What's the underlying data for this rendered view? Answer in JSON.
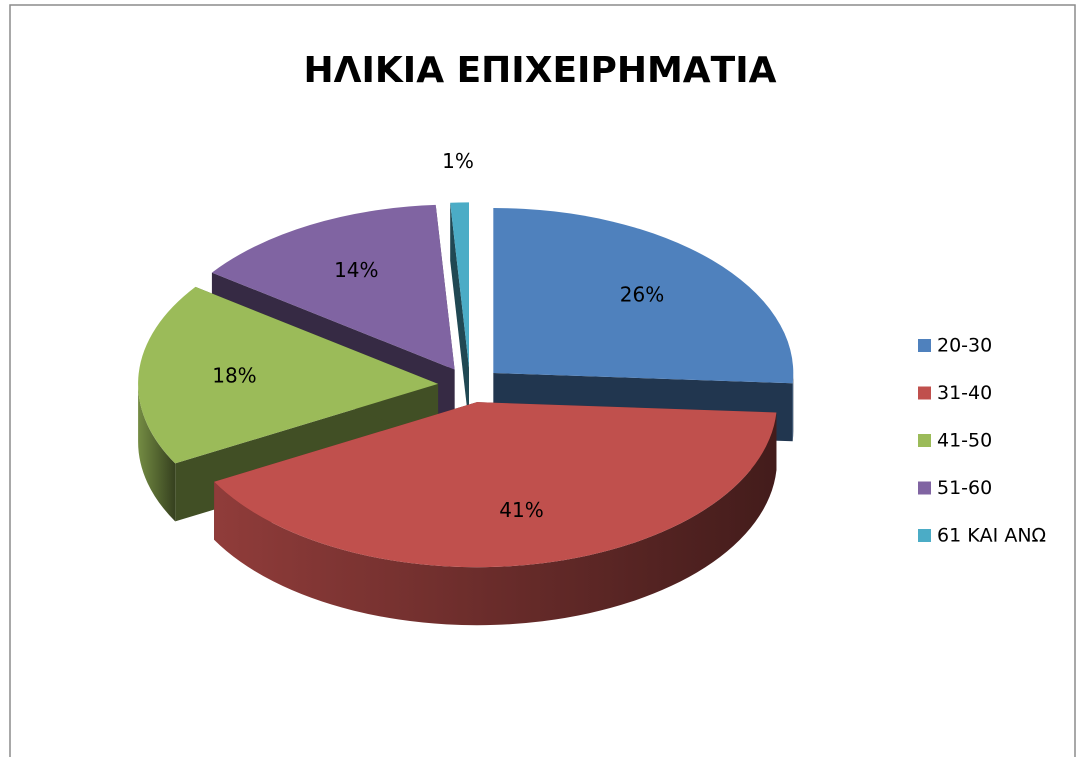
{
  "chart_data": {
    "type": "pie",
    "title": "ΗΛΙΚΙΑ ΕΠΙΧΕΙΡΗΜΑΤΙΑ",
    "categories": [
      "20-30",
      "31-40",
      "41-50",
      "51-60",
      "61 ΚΑΙ ΑΝΩ"
    ],
    "values": [
      26,
      41,
      18,
      14,
      1
    ],
    "value_labels": [
      "26%",
      "41%",
      "18%",
      "14%",
      "1%"
    ],
    "colors": [
      "#4f81bd",
      "#c0504d",
      "#9bbb59",
      "#8064a2",
      "#4bacc6"
    ],
    "legend": "right"
  }
}
